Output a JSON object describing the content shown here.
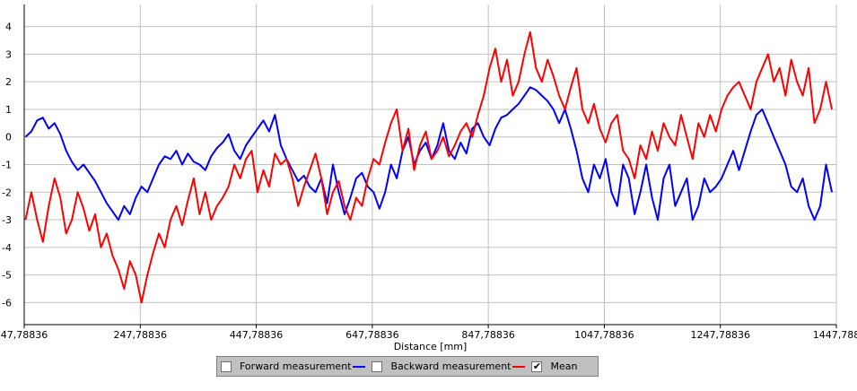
{
  "chart_data": {
    "type": "line",
    "xlabel": "Distance [mm]",
    "xlim": [
      47.78836,
      1447.78836
    ],
    "ylim": [
      -6.8,
      4.8
    ],
    "x_ticks": [
      47.78836,
      247.78836,
      447.78836,
      647.78836,
      847.78836,
      1047.78836,
      1247.78836,
      1447.78836
    ],
    "x_tick_labels": [
      "47,78836",
      "247,78836",
      "447,78836",
      "647,78836",
      "847,78836",
      "1047,78836",
      "1247,78836",
      "1447,788"
    ],
    "y_ticks": [
      -6,
      -5,
      -4,
      -3,
      -2,
      -1,
      0,
      1,
      2,
      3,
      4
    ],
    "y_tick_labels": [
      "-6",
      "-5",
      "-4",
      "-3",
      "-2",
      "-1",
      "0",
      "1",
      "2",
      "3",
      "4"
    ],
    "grid": true,
    "legend_position": "bottom-center",
    "colors": {
      "forward": "#0000ff",
      "backward": "#ff0000",
      "gridline": "#c0c0c0"
    },
    "series": [
      {
        "name": "Forward measurement",
        "color": "#0000ff",
        "x": [
          50,
          60,
          70,
          80,
          90,
          100,
          110,
          120,
          130,
          140,
          150,
          160,
          170,
          180,
          190,
          200,
          210,
          220,
          230,
          240,
          250,
          260,
          270,
          280,
          290,
          300,
          310,
          320,
          330,
          340,
          350,
          360,
          370,
          380,
          390,
          400,
          410,
          420,
          430,
          440,
          450,
          460,
          470,
          480,
          490,
          500,
          510,
          520,
          530,
          540,
          550,
          560,
          570,
          580,
          590,
          600,
          610,
          620,
          630,
          640,
          650,
          660,
          670,
          680,
          690,
          700,
          710,
          720,
          730,
          740,
          750,
          760,
          770,
          780,
          790,
          800,
          810,
          820,
          830,
          840,
          850,
          860,
          870,
          880,
          890,
          900,
          910,
          920,
          930,
          940,
          950,
          960,
          970,
          980,
          990,
          1000,
          1010,
          1020,
          1030,
          1040,
          1050,
          1060,
          1070,
          1080,
          1090,
          1100,
          1110,
          1120,
          1130,
          1140,
          1150,
          1160,
          1170,
          1180,
          1190,
          1200,
          1210,
          1220,
          1230,
          1240,
          1250,
          1260,
          1270,
          1280,
          1290,
          1300,
          1310,
          1320,
          1330,
          1340,
          1350,
          1360,
          1370,
          1380,
          1390,
          1400,
          1410,
          1420,
          1430,
          1440
        ],
        "y": [
          0.0,
          0.2,
          0.6,
          0.7,
          0.3,
          0.5,
          0.1,
          -0.5,
          -0.9,
          -1.2,
          -1.0,
          -1.3,
          -1.6,
          -2.0,
          -2.4,
          -2.7,
          -3.0,
          -2.5,
          -2.8,
          -2.2,
          -1.8,
          -2.0,
          -1.5,
          -1.0,
          -0.7,
          -0.8,
          -0.5,
          -1.0,
          -0.6,
          -0.9,
          -1.0,
          -1.2,
          -0.7,
          -0.4,
          -0.2,
          0.1,
          -0.5,
          -0.8,
          -0.3,
          0.0,
          0.3,
          0.6,
          0.2,
          0.8,
          -0.3,
          -0.8,
          -1.2,
          -1.6,
          -1.4,
          -1.8,
          -2.0,
          -1.5,
          -2.4,
          -1.0,
          -2.0,
          -2.8,
          -2.2,
          -1.5,
          -1.3,
          -1.8,
          -2.0,
          -2.6,
          -2.0,
          -1.0,
          -1.5,
          -0.5,
          0.0,
          -1.0,
          -0.5,
          -0.2,
          -0.8,
          -0.3,
          0.5,
          -0.5,
          -0.8,
          -0.2,
          -0.6,
          0.3,
          0.5,
          0.0,
          -0.3,
          0.3,
          0.7,
          0.8,
          1.0,
          1.2,
          1.5,
          1.8,
          1.7,
          1.5,
          1.3,
          1.0,
          0.5,
          1.0,
          0.3,
          -0.5,
          -1.5,
          -2.0,
          -1.0,
          -1.5,
          -0.8,
          -2.0,
          -2.5,
          -1.0,
          -1.5,
          -2.8,
          -2.0,
          -1.0,
          -2.2,
          -3.0,
          -1.5,
          -1.0,
          -2.5,
          -2.0,
          -1.5,
          -3.0,
          -2.5,
          -1.5,
          -2.0,
          -1.8,
          -1.5,
          -1.0,
          -0.5,
          -1.2,
          -0.5,
          0.2,
          0.8,
          1.0,
          0.5,
          0.0,
          -0.5,
          -1.0,
          -1.8,
          -2.0,
          -1.5,
          -2.5,
          -3.0,
          -2.5,
          -1.0,
          -2.0
        ]
      },
      {
        "name": "Backward measurement",
        "color": "#ff0000",
        "x": [
          50,
          60,
          70,
          80,
          90,
          100,
          110,
          120,
          130,
          140,
          150,
          160,
          170,
          180,
          190,
          200,
          210,
          220,
          230,
          240,
          250,
          260,
          270,
          280,
          290,
          300,
          310,
          320,
          330,
          340,
          350,
          360,
          370,
          380,
          390,
          400,
          410,
          420,
          430,
          440,
          450,
          460,
          470,
          480,
          490,
          500,
          510,
          520,
          530,
          540,
          550,
          560,
          570,
          580,
          590,
          600,
          610,
          620,
          630,
          640,
          650,
          660,
          670,
          680,
          690,
          700,
          710,
          720,
          730,
          740,
          750,
          760,
          770,
          780,
          790,
          800,
          810,
          820,
          830,
          840,
          850,
          860,
          870,
          880,
          890,
          900,
          910,
          920,
          930,
          940,
          950,
          960,
          970,
          980,
          990,
          1000,
          1010,
          1020,
          1030,
          1040,
          1050,
          1060,
          1070,
          1080,
          1090,
          1100,
          1110,
          1120,
          1130,
          1140,
          1150,
          1160,
          1170,
          1180,
          1190,
          1200,
          1210,
          1220,
          1230,
          1240,
          1250,
          1260,
          1270,
          1280,
          1290,
          1300,
          1310,
          1320,
          1330,
          1340,
          1350,
          1360,
          1370,
          1380,
          1390,
          1400,
          1410,
          1420,
          1430,
          1440
        ],
        "y": [
          -3.0,
          -2.0,
          -3.0,
          -3.8,
          -2.5,
          -1.5,
          -2.2,
          -3.5,
          -3.0,
          -2.0,
          -2.6,
          -3.4,
          -2.8,
          -4.0,
          -3.5,
          -4.3,
          -4.8,
          -5.5,
          -4.5,
          -5.0,
          -6.0,
          -5.0,
          -4.2,
          -3.5,
          -4.0,
          -3.0,
          -2.5,
          -3.2,
          -2.3,
          -1.5,
          -2.8,
          -2.0,
          -3.0,
          -2.5,
          -2.2,
          -1.8,
          -1.0,
          -1.5,
          -0.8,
          -0.5,
          -2.0,
          -1.2,
          -1.8,
          -0.6,
          -1.0,
          -0.8,
          -1.5,
          -2.5,
          -1.8,
          -1.2,
          -0.6,
          -1.5,
          -2.8,
          -2.0,
          -1.6,
          -2.5,
          -3.0,
          -2.2,
          -2.5,
          -1.5,
          -0.8,
          -1.0,
          -0.2,
          0.5,
          1.0,
          -0.5,
          0.3,
          -1.2,
          -0.3,
          0.2,
          -0.8,
          -0.5,
          0.0,
          -0.7,
          -0.3,
          0.2,
          0.5,
          0.0,
          0.8,
          1.5,
          2.5,
          3.2,
          2.0,
          2.8,
          1.5,
          2.0,
          3.0,
          3.8,
          2.5,
          2.0,
          2.8,
          2.2,
          1.5,
          1.0,
          1.8,
          2.5,
          1.0,
          0.5,
          1.2,
          0.3,
          -0.2,
          0.5,
          0.8,
          -0.5,
          -0.8,
          -1.5,
          -0.3,
          -0.8,
          0.2,
          -0.5,
          0.5,
          0.0,
          -0.3,
          0.8,
          0.0,
          -0.8,
          0.5,
          0.0,
          0.8,
          0.2,
          1.0,
          1.5,
          1.8,
          2.0,
          1.5,
          1.0,
          2.0,
          2.5,
          3.0,
          2.0,
          2.5,
          1.5,
          2.8,
          2.0,
          1.5,
          2.5,
          0.5,
          1.0,
          2.0,
          1.0
        ]
      }
    ]
  },
  "legend": {
    "items": [
      {
        "label": "Forward measurement",
        "checked": false,
        "color": "#0000ff"
      },
      {
        "label": "Backward measurement",
        "checked": false,
        "color": "#ff0000"
      },
      {
        "label": "Mean",
        "checked": true
      }
    ]
  }
}
